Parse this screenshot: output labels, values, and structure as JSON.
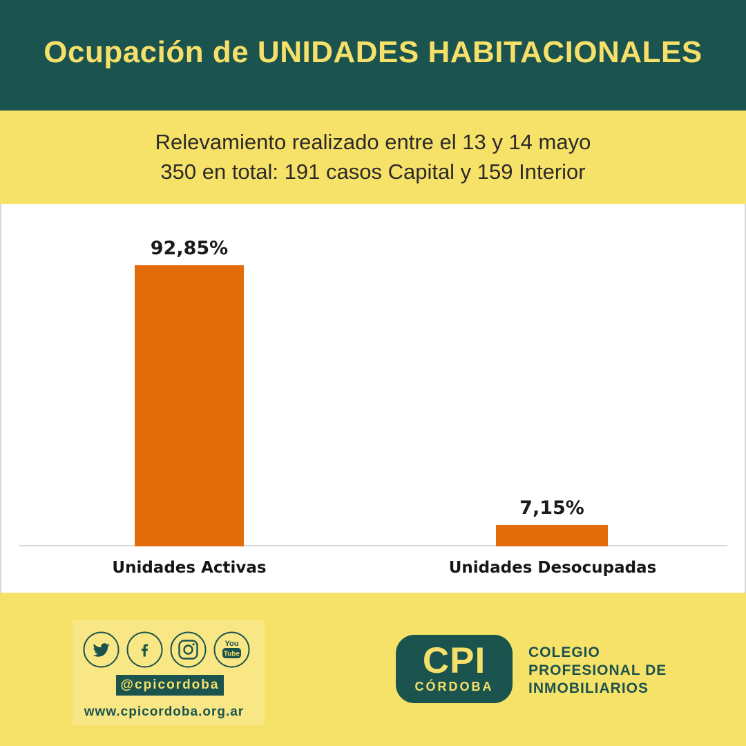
{
  "colors": {
    "teal": "#1B534E",
    "yellow": "#F7E269",
    "orange": "#E36C0A",
    "title_yellow": "#F6E06A",
    "subtitle_text": "#2B2A28",
    "chart_text": "#1B1B1B",
    "axis_gray": "#D9D9D9"
  },
  "header": {
    "title": "Ocupación de UNIDADES HABITACIONALES"
  },
  "subtitle": {
    "line1": "Relevamiento realizado entre el 13 y 14 mayo",
    "line2": "350 en total: 191 casos Capital y 159 Interior"
  },
  "chart_data": {
    "type": "bar",
    "categories": [
      "Unidades Activas",
      "Unidades Desocupadas"
    ],
    "values": [
      92.85,
      7.15
    ],
    "value_labels": [
      "92,85%",
      "7,15%"
    ],
    "bar_color": "#E36C0A",
    "title": "",
    "xlabel": "",
    "ylabel": "",
    "ylim": [
      0,
      100
    ],
    "grid": false,
    "legend": "none"
  },
  "footer": {
    "social_icons": [
      "twitter-icon",
      "facebook-icon",
      "instagram-icon",
      "youtube-icon"
    ],
    "youtube_icon_text_top": "You",
    "youtube_icon_text_bottom": "Tube",
    "facebook_icon_letter": "f",
    "handle": "@cpicordoba",
    "website": "www.cpicordoba.org.ar",
    "logo": {
      "acronym": "CPI",
      "city": "CÓRDOBA"
    },
    "org_line1": "COLEGIO",
    "org_line2": "PROFESIONAL DE",
    "org_line3": "INMOBILIARIOS"
  }
}
